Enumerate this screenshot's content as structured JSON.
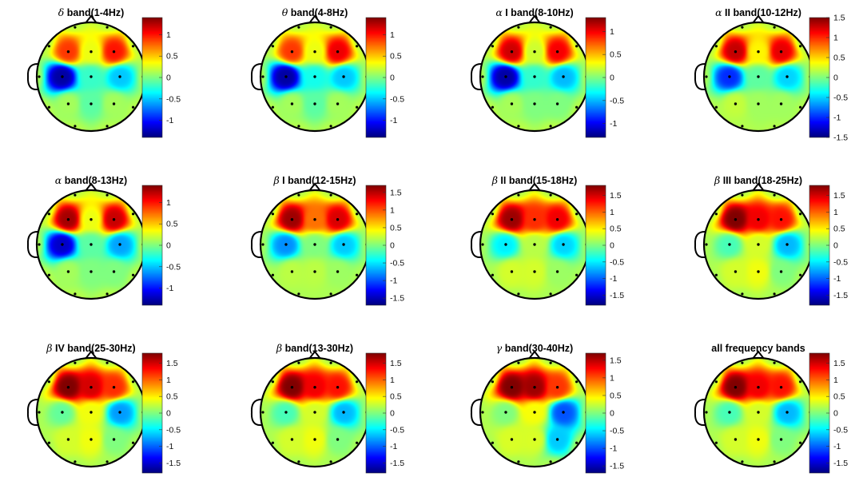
{
  "chart_data": {
    "type": "heatmap",
    "subtype": "eeg-topographic-map",
    "colormap": "jet",
    "grid": false,
    "layout": "3x4",
    "electrodes": [
      "F3",
      "Fz",
      "F4",
      "C3",
      "Cz",
      "C4",
      "P3",
      "Pz",
      "P4"
    ],
    "panels": [
      {
        "title_symbol": "δ",
        "title": " band(1-4Hz)",
        "clim": [
          -1.4,
          1.4
        ],
        "colorbar_ticks": [
          1,
          0.5,
          0,
          -0.5,
          -1
        ],
        "colorbar_tick_labels": [
          "1",
          "0.5",
          "0",
          "-0.5",
          "-1"
        ],
        "values": [
          0.9,
          0.3,
          1.0,
          -1.3,
          -0.2,
          -0.5,
          0.1,
          -0.1,
          0.1
        ]
      },
      {
        "title_symbol": "θ",
        "title": " band(4-8Hz)",
        "clim": [
          -1.4,
          1.4
        ],
        "colorbar_ticks": [
          1,
          0.5,
          0,
          -0.5,
          -1
        ],
        "colorbar_tick_labels": [
          "1",
          "0.5",
          "0",
          "-0.5",
          "-1"
        ],
        "values": [
          0.9,
          0.3,
          1.1,
          -1.3,
          -0.3,
          -0.5,
          0.1,
          -0.1,
          0.1
        ]
      },
      {
        "title_symbol": "α",
        "title": " I band(8-10Hz)",
        "clim": [
          -1.3,
          1.3
        ],
        "colorbar_ticks": [
          1,
          0.5,
          0,
          -0.5,
          -1
        ],
        "colorbar_tick_labels": [
          "1",
          "0.5",
          "0",
          "-0.5",
          "-1"
        ],
        "values": [
          1.1,
          0.2,
          1.0,
          -1.2,
          -0.2,
          -0.5,
          0.1,
          0.0,
          0.0
        ]
      },
      {
        "title_symbol": "α",
        "title": " II band(10-12Hz)",
        "clim": [
          -1.5,
          1.5
        ],
        "colorbar_ticks": [
          1.5,
          1,
          0.5,
          0,
          -0.5,
          -1,
          -1.5
        ],
        "colorbar_tick_labels": [
          "1.5",
          "1",
          "0.5",
          "0",
          "-0.5",
          "-1",
          "-1.5"
        ],
        "values": [
          1.3,
          0.4,
          1.2,
          -1.0,
          -0.1,
          -0.5,
          0.2,
          0.1,
          0.1
        ]
      },
      {
        "title_symbol": "α",
        "title": " band(8-13Hz)",
        "clim": [
          -1.4,
          1.4
        ],
        "colorbar_ticks": [
          1,
          0.5,
          0,
          -0.5,
          -1
        ],
        "colorbar_tick_labels": [
          "1",
          "0.5",
          "0",
          "-0.5",
          "-1"
        ],
        "values": [
          1.3,
          0.3,
          1.2,
          -1.2,
          -0.1,
          -0.6,
          0.1,
          0.0,
          0.0
        ]
      },
      {
        "title_symbol": "β",
        "title": " I band(12-15Hz)",
        "clim": [
          -1.7,
          1.7
        ],
        "colorbar_ticks": [
          1.5,
          1,
          0.5,
          0,
          -0.5,
          -1,
          -1.5
        ],
        "colorbar_tick_labels": [
          "1.5",
          "1",
          "0.5",
          "0",
          "-0.5",
          "-1",
          "-1.5"
        ],
        "values": [
          1.6,
          0.9,
          1.4,
          -0.8,
          0.0,
          -0.6,
          0.2,
          0.2,
          0.1
        ]
      },
      {
        "title_symbol": "β",
        "title": " II band(15-18Hz)",
        "clim": [
          -1.8,
          1.8
        ],
        "colorbar_ticks": [
          1.5,
          1,
          0.5,
          0,
          -0.5,
          -1,
          -1.5
        ],
        "colorbar_tick_labels": [
          "1.5",
          "1",
          "0.5",
          "0",
          "-0.5",
          "-1",
          "-1.5"
        ],
        "values": [
          1.7,
          1.2,
          1.4,
          -0.5,
          0.2,
          -0.6,
          0.3,
          0.3,
          0.1
        ]
      },
      {
        "title_symbol": "β",
        "title": " III band(18-25Hz)",
        "clim": [
          -1.8,
          1.8
        ],
        "colorbar_ticks": [
          1.5,
          1,
          0.5,
          0,
          -0.5,
          -1,
          -1.5
        ],
        "colorbar_tick_labels": [
          "1.5",
          "1",
          "0.5",
          "0",
          "-0.5",
          "-1",
          "-1.5"
        ],
        "values": [
          1.8,
          1.4,
          1.3,
          -0.2,
          0.3,
          -0.7,
          0.3,
          0.4,
          0.0
        ]
      },
      {
        "title_symbol": "β",
        "title": " IV band(25-30Hz)",
        "clim": [
          -1.8,
          1.8
        ],
        "colorbar_ticks": [
          1.5,
          1,
          0.5,
          0,
          -0.5,
          -1,
          -1.5
        ],
        "colorbar_tick_labels": [
          "1.5",
          "1",
          "0.5",
          "0",
          "-0.5",
          "-1",
          "-1.5"
        ],
        "values": [
          1.8,
          1.5,
          1.2,
          -0.1,
          0.4,
          -0.8,
          0.3,
          0.4,
          0.0
        ]
      },
      {
        "title_symbol": "β",
        "title": " band(13-30Hz)",
        "clim": [
          -1.8,
          1.8
        ],
        "colorbar_ticks": [
          1.5,
          1,
          0.5,
          0,
          -0.5,
          -1,
          -1.5
        ],
        "colorbar_tick_labels": [
          "1.5",
          "1",
          "0.5",
          "0",
          "-0.5",
          "-1",
          "-1.5"
        ],
        "values": [
          1.8,
          1.4,
          1.3,
          -0.2,
          0.3,
          -0.7,
          0.3,
          0.4,
          0.0
        ]
      },
      {
        "title_symbol": "γ",
        "title": " band(30-40Hz)",
        "clim": [
          -1.7,
          1.7
        ],
        "colorbar_ticks": [
          1.5,
          1,
          0.5,
          0,
          -0.5,
          -1,
          -1.5
        ],
        "colorbar_tick_labels": [
          "1.5",
          "1",
          "0.5",
          "0",
          "-0.5",
          "-1",
          "-1.5"
        ],
        "values": [
          1.7,
          1.6,
          1.1,
          0.0,
          0.4,
          -1.0,
          0.3,
          0.3,
          -0.6
        ]
      },
      {
        "title_symbol": "",
        "title": "all frequency bands",
        "clim": [
          -1.8,
          1.8
        ],
        "colorbar_ticks": [
          1.5,
          1,
          0.5,
          0,
          -0.5,
          -1,
          -1.5
        ],
        "colorbar_tick_labels": [
          "1.5",
          "1",
          "0.5",
          "0",
          "-0.5",
          "-1",
          "-1.5"
        ],
        "values": [
          1.8,
          1.4,
          1.3,
          -0.2,
          0.3,
          -0.7,
          0.3,
          0.4,
          0.0
        ]
      }
    ]
  }
}
